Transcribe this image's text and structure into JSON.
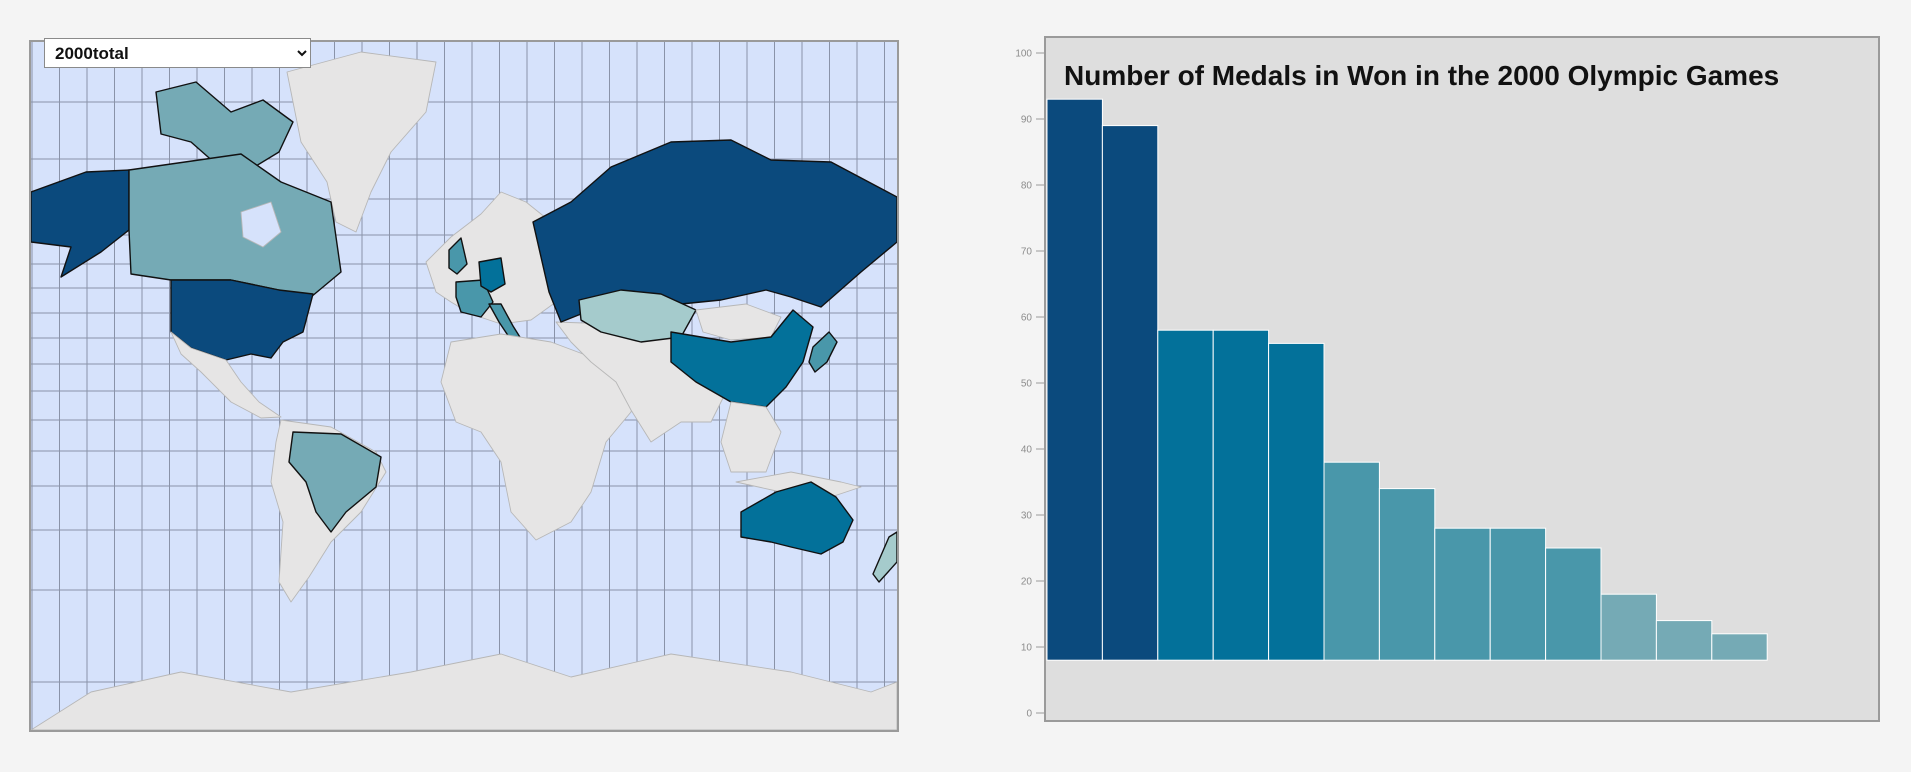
{
  "controls": {
    "year_select": {
      "selected": "2000total",
      "options": [
        "2000total"
      ]
    }
  },
  "colors": {
    "ocean": "#d6e2fb",
    "graticule": "#8a93a8",
    "land": "#e6e5e5",
    "chart_background": "#dedede",
    "scale": [
      "#0b4a7d",
      "#03719a",
      "#4997aa",
      "#75aab5",
      "#a5cbcc"
    ]
  },
  "map": {
    "highlighted_regions": [
      {
        "name": "Alaska",
        "color": "#0b4a7d"
      },
      {
        "name": "Canada",
        "color": "#75aab5"
      },
      {
        "name": "United States",
        "color": "#0b4a7d"
      },
      {
        "name": "Russia",
        "color": "#0b4a7d"
      },
      {
        "name": "China",
        "color": "#03719a"
      },
      {
        "name": "Australia",
        "color": "#03719a"
      },
      {
        "name": "Brazil",
        "color": "#75aab5"
      },
      {
        "name": "Kazakhstan",
        "color": "#a5cbcc"
      },
      {
        "name": "Germany",
        "color": "#03719a"
      },
      {
        "name": "United Kingdom",
        "color": "#4997aa"
      },
      {
        "name": "France",
        "color": "#4997aa"
      },
      {
        "name": "Italy",
        "color": "#4997aa"
      },
      {
        "name": "Japan",
        "color": "#4997aa"
      },
      {
        "name": "New Zealand",
        "color": "#a5cbcc"
      }
    ]
  },
  "chart_data": {
    "type": "bar",
    "title": "Number of Medals in Won in the 2000 Olympic Games",
    "ylim": [
      0,
      100
    ],
    "baseline": 8,
    "y_ticks": [
      "0",
      "10",
      "20",
      "30",
      "40",
      "50",
      "60",
      "70",
      "80",
      "90",
      "100"
    ],
    "values": [
      93,
      89,
      58,
      58,
      56,
      38,
      34,
      28,
      28,
      25,
      18,
      14,
      12
    ],
    "colors": [
      "#0b4a7d",
      "#0b4a7d",
      "#03719a",
      "#03719a",
      "#03719a",
      "#4997aa",
      "#4997aa",
      "#4997aa",
      "#4997aa",
      "#4997aa",
      "#75aab5",
      "#75aab5",
      "#75aab5"
    ]
  }
}
